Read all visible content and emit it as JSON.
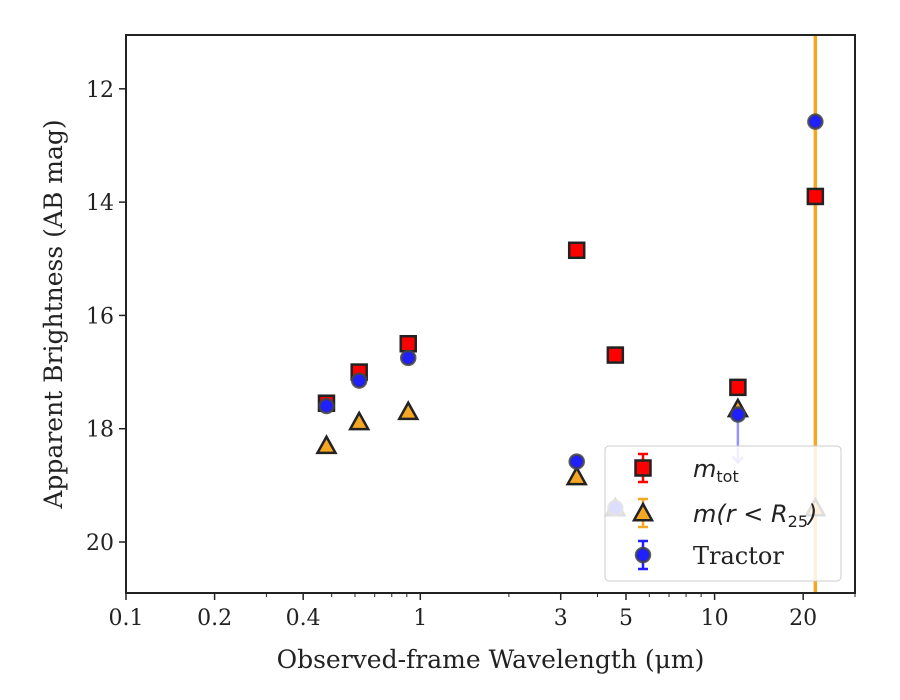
{
  "chart_data": {
    "type": "scatter",
    "xlabel": "Observed-frame Wavelength (μm)",
    "ylabel": "Apparent Brightness (AB mag)",
    "xscale": "log",
    "xlim": [
      0.1,
      30
    ],
    "ylim": [
      20.9,
      11.05
    ],
    "y_inverted": true,
    "x_ticks": [
      0.1,
      0.2,
      0.4,
      1,
      3,
      5,
      10,
      20
    ],
    "x_tick_labels": [
      "0.1",
      "0.2",
      "0.4",
      "1",
      "3",
      "5",
      "10",
      "20"
    ],
    "y_ticks": [
      12,
      14,
      16,
      18,
      20
    ],
    "y_tick_labels": [
      "12",
      "14",
      "16",
      "18",
      "20"
    ],
    "grid": false,
    "legend_position": "lower-right",
    "vline": {
      "x": 22,
      "color": "#f5a623"
    },
    "series": [
      {
        "name": "m_tot",
        "legend_label": "m",
        "legend_sub": "tot",
        "marker": "square",
        "color": "#ff0000",
        "edge": "#222222",
        "points": [
          {
            "x": 0.48,
            "y": 17.55
          },
          {
            "x": 0.62,
            "y": 17.0
          },
          {
            "x": 0.91,
            "y": 16.5
          },
          {
            "x": 3.4,
            "y": 14.85
          },
          {
            "x": 4.6,
            "y": 16.7
          },
          {
            "x": 12.0,
            "y": 17.27
          },
          {
            "x": 22.0,
            "y": 13.9
          }
        ]
      },
      {
        "name": "m(r < R25)",
        "legend_label": "m(r < R",
        "legend_sub": "25",
        "legend_tail": ")",
        "marker": "triangle",
        "color": "#f5a623",
        "edge": "#222222",
        "points": [
          {
            "x": 0.48,
            "y": 18.3
          },
          {
            "x": 0.62,
            "y": 17.88
          },
          {
            "x": 0.91,
            "y": 17.7
          },
          {
            "x": 3.4,
            "y": 18.85
          },
          {
            "x": 4.6,
            "y": 19.4
          },
          {
            "x": 12.0,
            "y": 17.65
          },
          {
            "x": 22.0,
            "y": 19.4
          }
        ]
      },
      {
        "name": "Tractor",
        "legend_label": "Tractor",
        "marker": "circle",
        "color": "#1f1fff",
        "edge": "#444444",
        "points": [
          {
            "x": 0.48,
            "y": 17.6
          },
          {
            "x": 0.62,
            "y": 17.15
          },
          {
            "x": 0.91,
            "y": 16.75
          },
          {
            "x": 3.4,
            "y": 18.58
          },
          {
            "x": 4.6,
            "y": 19.4
          },
          {
            "x": 12.0,
            "y": 17.75,
            "upper_limit": true,
            "arrow_to": 18.6
          },
          {
            "x": 22.0,
            "y": 12.58
          }
        ]
      }
    ]
  }
}
